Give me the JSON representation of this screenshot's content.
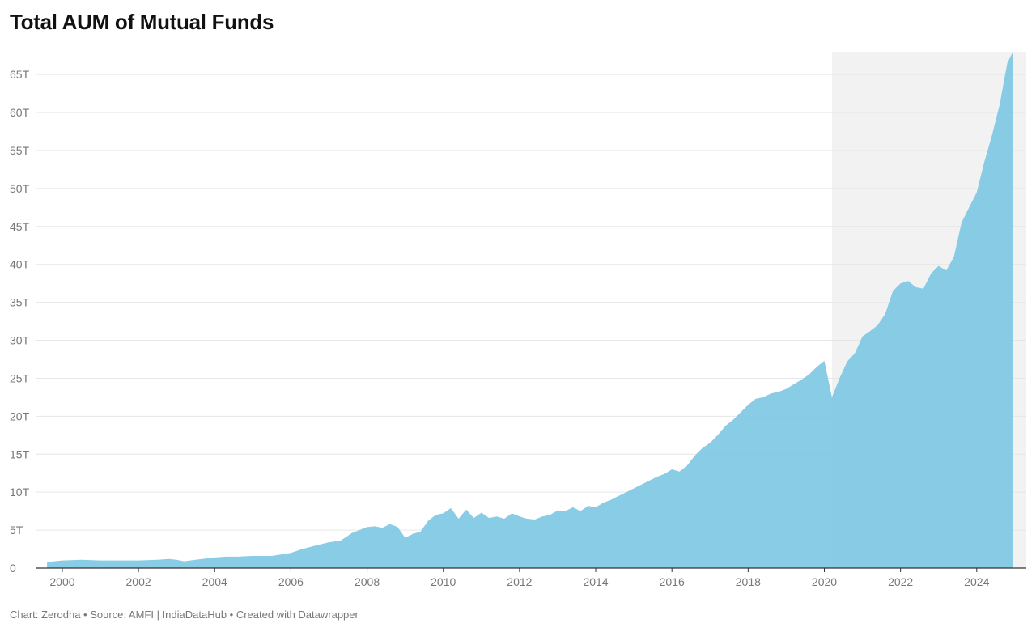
{
  "chart_data": {
    "type": "area",
    "title": "Total AUM of Mutual Funds",
    "xlabel": "",
    "ylabel": "",
    "xlim": [
      1999.3,
      2025.3
    ],
    "ylim": [
      0,
      68
    ],
    "grid": true,
    "legend": "none",
    "y_ticks": [
      0,
      5,
      10,
      15,
      20,
      25,
      30,
      35,
      40,
      45,
      50,
      55,
      60,
      65
    ],
    "y_tick_labels": [
      "0",
      "5T",
      "10T",
      "15T",
      "20T",
      "25T",
      "30T",
      "35T",
      "40T",
      "45T",
      "50T",
      "55T",
      "60T",
      "65T"
    ],
    "x_ticks": [
      2000,
      2002,
      2004,
      2006,
      2008,
      2010,
      2012,
      2014,
      2016,
      2018,
      2020,
      2022,
      2024
    ],
    "x_tick_labels": [
      "2000",
      "2002",
      "2004",
      "2006",
      "2008",
      "2010",
      "2012",
      "2014",
      "2016",
      "2018",
      "2020",
      "2022",
      "2024"
    ],
    "highlight_range": [
      2020.2,
      2025.3
    ],
    "colors": {
      "area": "#7ec8e3",
      "highlight": "#f2f2f2",
      "grid": "#e6e6e6",
      "axis": "#333333"
    },
    "x": [
      1999.6,
      2000.0,
      2000.5,
      2001.0,
      2001.5,
      2002.0,
      2002.5,
      2002.8,
      2003.0,
      2003.2,
      2003.5,
      2004.0,
      2004.3,
      2004.6,
      2005.0,
      2005.5,
      2006.0,
      2006.3,
      2006.6,
      2007.0,
      2007.3,
      2007.6,
      2008.0,
      2008.2,
      2008.4,
      2008.6,
      2008.8,
      2009.0,
      2009.2,
      2009.4,
      2009.6,
      2009.8,
      2010.0,
      2010.2,
      2010.4,
      2010.6,
      2010.8,
      2011.0,
      2011.2,
      2011.4,
      2011.6,
      2011.8,
      2012.0,
      2012.2,
      2012.4,
      2012.6,
      2012.8,
      2013.0,
      2013.2,
      2013.4,
      2013.6,
      2013.8,
      2014.0,
      2014.2,
      2014.4,
      2014.6,
      2014.8,
      2015.0,
      2015.2,
      2015.4,
      2015.6,
      2015.8,
      2016.0,
      2016.2,
      2016.4,
      2016.6,
      2016.8,
      2017.0,
      2017.2,
      2017.4,
      2017.6,
      2017.8,
      2018.0,
      2018.2,
      2018.4,
      2018.6,
      2018.8,
      2019.0,
      2019.2,
      2019.4,
      2019.6,
      2019.8,
      2020.0,
      2020.2,
      2020.4,
      2020.6,
      2020.8,
      2021.0,
      2021.2,
      2021.4,
      2021.6,
      2021.8,
      2022.0,
      2022.2,
      2022.4,
      2022.6,
      2022.8,
      2023.0,
      2023.2,
      2023.4,
      2023.6,
      2023.8,
      2024.0,
      2024.2,
      2024.4,
      2024.6,
      2024.8,
      2024.95
    ],
    "values": [
      0.8,
      1.0,
      1.1,
      1.0,
      1.0,
      1.0,
      1.1,
      1.2,
      1.1,
      0.9,
      1.1,
      1.4,
      1.5,
      1.5,
      1.6,
      1.6,
      2.0,
      2.5,
      2.9,
      3.4,
      3.6,
      4.6,
      5.4,
      5.5,
      5.3,
      5.8,
      5.4,
      4.0,
      4.5,
      4.8,
      6.2,
      7.0,
      7.2,
      7.9,
      6.5,
      7.7,
      6.6,
      7.3,
      6.6,
      6.8,
      6.5,
      7.2,
      6.8,
      6.5,
      6.4,
      6.8,
      7.0,
      7.6,
      7.5,
      8.0,
      7.5,
      8.2,
      8.0,
      8.6,
      9.0,
      9.5,
      10.0,
      10.5,
      11.0,
      11.5,
      12.0,
      12.4,
      13.0,
      12.7,
      13.5,
      14.8,
      15.8,
      16.5,
      17.5,
      18.7,
      19.5,
      20.5,
      21.5,
      22.3,
      22.5,
      23.0,
      23.2,
      23.6,
      24.2,
      24.8,
      25.5,
      26.5,
      27.3,
      22.5,
      25.0,
      27.2,
      28.3,
      30.5,
      31.2,
      32.0,
      33.5,
      36.5,
      37.5,
      37.8,
      37.0,
      36.8,
      38.8,
      39.8,
      39.2,
      41.0,
      45.5,
      47.5,
      49.5,
      53.5,
      57.0,
      61.0,
      66.5,
      68.0
    ]
  },
  "footer": {
    "text": "Chart: Zerodha • Source: AMFI | IndiaDataHub • Created with Datawrapper"
  }
}
